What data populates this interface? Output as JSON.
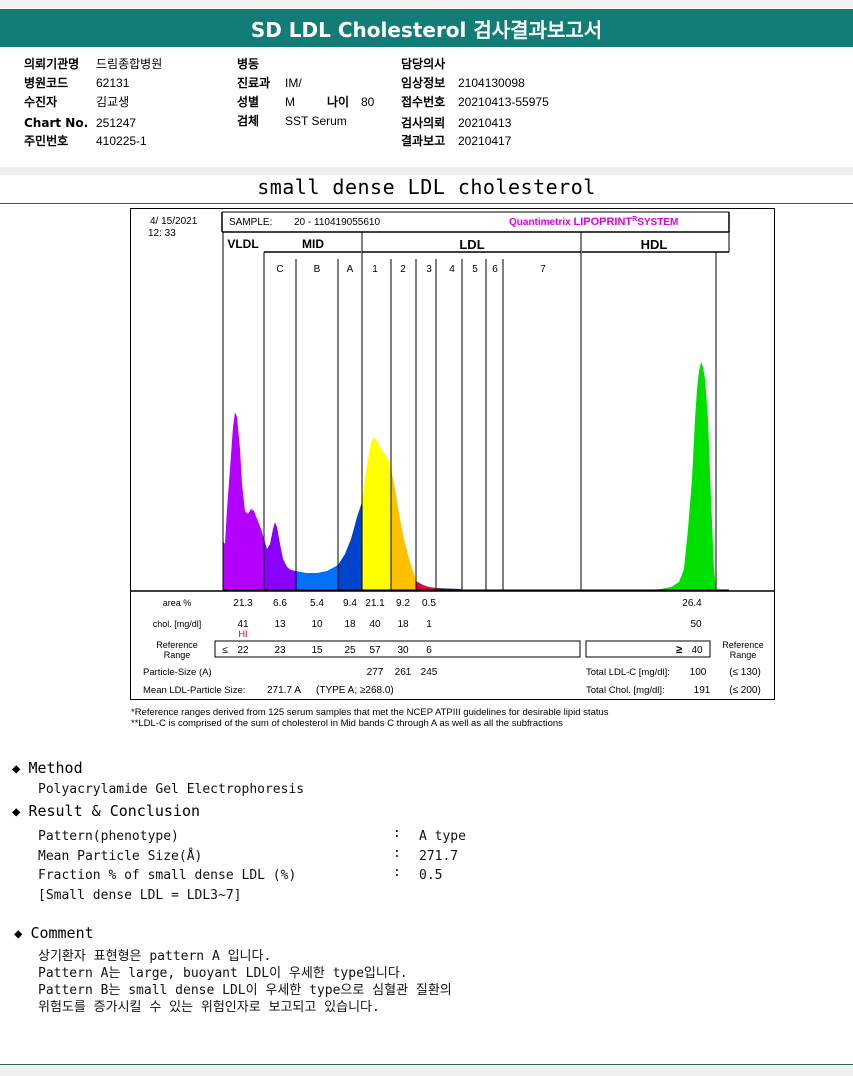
{
  "report_title": "SD LDL Cholesterol 검사결과보고서",
  "header": {
    "col1": [
      {
        "label": "의뢰기관명",
        "value": "드림종합병원"
      },
      {
        "label": "병원코드",
        "value": "62131"
      },
      {
        "label": "수진자",
        "value": "김교생"
      },
      {
        "label": "Chart No.",
        "value": "251247"
      },
      {
        "label": "주민번호",
        "value": "410225-1"
      }
    ],
    "col2": [
      {
        "label": "병동",
        "value": ""
      },
      {
        "label": "진료과",
        "value": "IM/"
      },
      {
        "label": "성별",
        "value": "M"
      },
      {
        "label": "검체",
        "value": "SST Serum"
      }
    ],
    "age": {
      "label": "나이",
      "value": "80"
    },
    "col3": [
      {
        "label": "담당의사",
        "value": ""
      },
      {
        "label": "임상정보",
        "value": "2104130098"
      },
      {
        "label": "접수번호",
        "value": "20210413-55975"
      },
      {
        "label": "검사의뢰",
        "value": "20210413"
      },
      {
        "label": "결과보고",
        "value": "20210417"
      }
    ]
  },
  "subtitle": "small dense LDL cholesterol",
  "lipoprint": {
    "date": "4/ 15/2021",
    "time": "12: 33",
    "sample_label": "SAMPLE:",
    "sample_id": "20 - 110419055610",
    "brand_a": "Quantimetrix ",
    "brand_b": "LIPOPRINT",
    "brand_c": "SYSTEM",
    "brand_reg": "R",
    "groups": {
      "vldl": "VLDL",
      "mid": "MID",
      "ldl": "LDL",
      "hdl": "HDL"
    },
    "bands": [
      "C",
      "B",
      "A",
      "1",
      "2",
      "3",
      "4",
      "5",
      "6",
      "7"
    ],
    "row_labels": {
      "area": "area %",
      "chol": "chol. [mg/dl]",
      "ref_range_1": "Reference",
      "ref_range_2": "Range",
      "particle_size": "Particle-Size  (A)",
      "mean_size": "Mean LDL-Particle Size:"
    },
    "area": [
      "21.3",
      "6.6",
      "5.4",
      "9.4",
      "21.1",
      "9.2",
      "0.5"
    ],
    "hdl_area": "26.4",
    "chol": [
      "41",
      "13",
      "10",
      "18",
      "40",
      "18",
      "1"
    ],
    "hdl_chol": "50",
    "hi_flag": "HI",
    "ref_le": "≤",
    "ref": [
      "22",
      "23",
      "15",
      "25",
      "57",
      "30",
      "6"
    ],
    "hdl_ref_ge": "≥",
    "hdl_ref": "40",
    "particle_size": [
      "277",
      "261",
      "245"
    ],
    "mean_size_value": "271.7 A",
    "type_text": "(TYPE A; ≥268.0)",
    "total_ldlc_label": "Total LDL-C [mg/dl]:",
    "total_ldlc_value": "100",
    "total_ldlc_ref": "(≤ 130)",
    "total_chol_label": "Total Chol.  [mg/dl]:",
    "total_chol_value": "191",
    "total_chol_ref": "(≤ 200)"
  },
  "footnotes": [
    "*Reference ranges derived from 125 serum samples that met the NCEP ATPIII guidelines for desirable lipid status",
    "**LDL-C is comprised of the sum of cholesterol in Mid bands C through A as well as all the subfractions"
  ],
  "method": {
    "heading": "Method",
    "text": "Polyacrylamide Gel Electrophoresis"
  },
  "result": {
    "heading": "Result & Conclusion",
    "rows": [
      {
        "label": "Pattern(phenotype)",
        "sep": ":",
        "value": "A type"
      },
      {
        "label": "Mean Particle Size(Å)",
        "sep": ":",
        "value": "271.7"
      },
      {
        "label": "Fraction % of small dense LDL (%)",
        "sep": ":",
        "value": "0.5"
      }
    ],
    "note": "[Small dense LDL = LDL3~7]"
  },
  "comment": {
    "heading": "Comment",
    "lines": [
      "상기환자 표현형은 pattern A 입니다.",
      "Pattern A는 large, buoyant LDL이 우세한 type입니다.",
      "Pattern B는 small dense LDL이 우세한 type으로 심혈관 질환의",
      "위험도를 증가시킬 수 있는 위험인자로 보고되고 있습니다."
    ]
  },
  "colors": {
    "title_bg": "#127c76",
    "vldl": "#b300ff",
    "c": "#8a00ff",
    "b": "#0070ff",
    "a": "#0044cc",
    "ldl1": "#ffff00",
    "ldl2": "#ffc000",
    "ldl3": "#e00040",
    "hdl": "#00e000",
    "hi": "#cc0000",
    "brand": "#e000e0"
  }
}
